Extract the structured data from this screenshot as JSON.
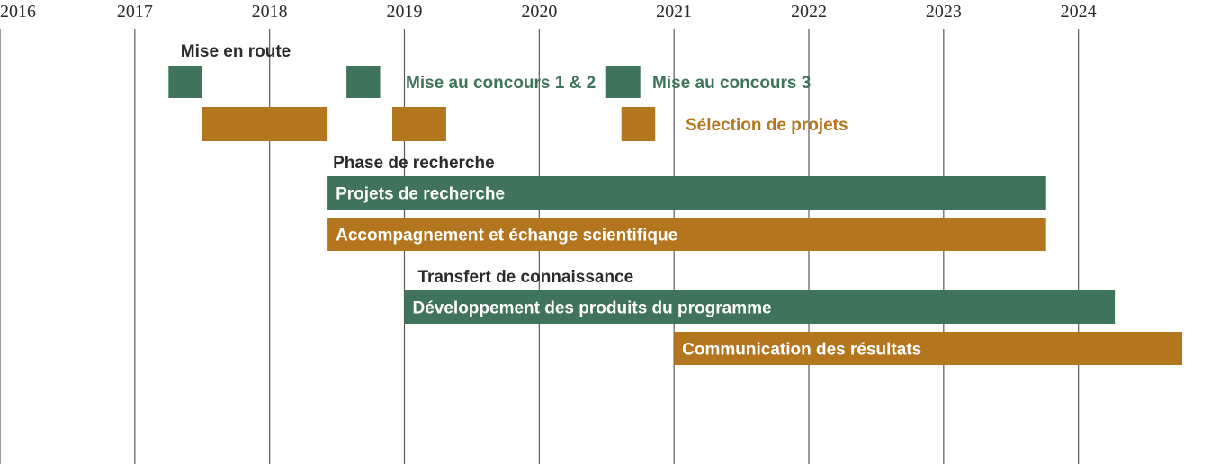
{
  "chart_data": {
    "type": "gantt",
    "x_axis": {
      "ticks": [
        "2016",
        "2017",
        "2018",
        "2019",
        "2020",
        "2021",
        "2022",
        "2023",
        "2024"
      ],
      "range": [
        2016,
        2025.05
      ],
      "grid": true
    },
    "colors": {
      "green": "#3f735c",
      "orange": "#b3761e",
      "text": "#2b2b2b",
      "gridline": "#5a5a5a"
    },
    "sections": [
      {
        "label": "Mise en route",
        "start": 2017.3
      },
      {
        "label": "Phase de recherche",
        "start": 2018.43
      },
      {
        "label": "Transfert de connaissance",
        "start": 2019.06
      }
    ],
    "tasks": [
      {
        "label": "Mise au concours 1 & 2",
        "color": "green",
        "label_position": "right",
        "segments": [
          [
            2017.25,
            2017.5
          ],
          [
            2018.57,
            2018.82
          ]
        ]
      },
      {
        "label": "Mise au concours 3",
        "color": "green",
        "label_position": "right",
        "segments": [
          [
            2020.49,
            2020.75
          ]
        ]
      },
      {
        "label": "Sélection de projets",
        "color": "orange",
        "label_position": "right",
        "segments": [
          [
            2017.5,
            2018.43
          ],
          [
            2018.91,
            2019.31
          ],
          [
            2020.61,
            2020.86
          ]
        ]
      },
      {
        "label": "Projets de recherche",
        "color": "green",
        "label_position": "inside",
        "segments": [
          [
            2018.43,
            2023.76
          ]
        ]
      },
      {
        "label": "Accompagnement et échange scientifique",
        "color": "orange",
        "label_position": "inside",
        "segments": [
          [
            2018.43,
            2023.76
          ]
        ]
      },
      {
        "label": "Développement des produits du programme",
        "color": "green",
        "label_position": "inside",
        "segments": [
          [
            2019.0,
            2024.27
          ]
        ]
      },
      {
        "label": "Communication des résultats",
        "color": "orange",
        "label_position": "inside",
        "segments": [
          [
            2021.0,
            2024.77
          ]
        ]
      }
    ]
  }
}
